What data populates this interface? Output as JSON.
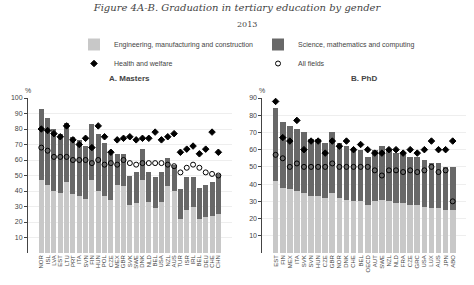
{
  "title": "Figure 4A-B. Graduation in tertiary education by gender",
  "subtitle": "2013",
  "chart_data": [
    {
      "type": "bar",
      "title": "A. Masters",
      "stacked": true,
      "grid": true,
      "legend": "top",
      "ylabel": "%",
      "categories": [
        "NOR",
        "ISL",
        "LVA",
        "EST",
        "LTU",
        "PRT",
        "ITA",
        "SVN",
        "FIN",
        "HUN",
        "POL",
        "CZE",
        "MEX",
        "GBR",
        "SVK",
        "SWE",
        "DNK",
        "NLD",
        "BEL",
        "USA",
        "NZL",
        "AUS",
        "TUR",
        "ISR",
        "IRL",
        "BEL",
        "DEU",
        "CHE",
        "CHN"
      ],
      "series": [
        {
          "name": "Engineering, manufacturing and construction",
          "type": "bar",
          "color": "#c8c8c8",
          "values": [
            47,
            44,
            40,
            39,
            46,
            38,
            37,
            35,
            47,
            40,
            37,
            34,
            44,
            43,
            31,
            32,
            47,
            33,
            29,
            33,
            43,
            40,
            22,
            28,
            30,
            22,
            23,
            24,
            25
          ]
        },
        {
          "name": "Science, mathematics and computing",
          "type": "bar",
          "color": "#686868",
          "values": [
            46,
            43,
            40,
            38,
            38,
            37,
            36,
            34,
            36,
            37,
            34,
            30,
            20,
            21,
            19,
            20,
            20,
            19,
            20,
            19,
            18,
            17,
            19,
            21,
            19,
            20,
            21,
            22,
            26
          ]
        },
        {
          "name": "Health and welfare",
          "type": "scatter",
          "color": "#000000",
          "marker": "diamond",
          "values": [
            80,
            79,
            77,
            75,
            82,
            73,
            70,
            74,
            68,
            82,
            75,
            65,
            73,
            74,
            75,
            73,
            74,
            74,
            78,
            73,
            75,
            77,
            65,
            67,
            69,
            64,
            67,
            78,
            65
          ]
        },
        {
          "name": "All fields",
          "type": "scatter",
          "color": "#000000",
          "marker": "circle-open",
          "values": [
            68,
            66,
            62,
            62,
            62,
            60,
            60,
            60,
            58,
            60,
            57,
            58,
            57,
            60,
            58,
            57,
            58,
            58,
            58,
            58,
            57,
            56,
            52,
            55,
            57,
            55,
            52,
            51,
            50
          ]
        }
      ],
      "ylim": [
        0,
        100
      ],
      "yticks": [
        10,
        20,
        30,
        40,
        50,
        60,
        70,
        80,
        90,
        100
      ]
    },
    {
      "type": "bar",
      "title": "B. PhD",
      "stacked": true,
      "grid": true,
      "legend": "top",
      "ylabel": "%",
      "categories": [
        "EST",
        "FIN",
        "MEX",
        "ITA",
        "SVK",
        "SVN",
        "HUN",
        "CZE",
        "GBR",
        "NOR",
        "DNK",
        "CHE",
        "BEL",
        "OECD",
        "AUT",
        "SWE",
        "NZL",
        "NLD",
        "FRA",
        "CZE",
        "GRC",
        "USA",
        "LUX",
        "AUS",
        "JPN",
        "ABO"
      ],
      "series": [
        {
          "name": "Engineering, manufacturing and construction",
          "type": "bar",
          "color": "#c8c8c8",
          "values": [
            42,
            38,
            37,
            36,
            35,
            33,
            33,
            32,
            35,
            32,
            31,
            30,
            30,
            28,
            30,
            31,
            30,
            29,
            29,
            28,
            28,
            27,
            26,
            26,
            25,
            25
          ]
        },
        {
          "name": "Science, mathematics and computing",
          "type": "bar",
          "color": "#686868",
          "values": [
            42,
            38,
            37,
            36,
            35,
            33,
            33,
            32,
            35,
            32,
            31,
            30,
            30,
            28,
            30,
            31,
            30,
            29,
            29,
            28,
            28,
            27,
            26,
            26,
            25,
            25
          ]
        },
        {
          "name": "Health and welfare",
          "type": "scatter",
          "color": "#000000",
          "marker": "diamond",
          "values": [
            88,
            67,
            65,
            77,
            60,
            65,
            65,
            58,
            65,
            62,
            65,
            60,
            63,
            60,
            58,
            58,
            60,
            60,
            58,
            60,
            58,
            60,
            65,
            60,
            60,
            65
          ]
        },
        {
          "name": "All fields",
          "type": "scatter",
          "color": "#000000",
          "marker": "circle-open",
          "values": [
            57,
            55,
            50,
            52,
            50,
            50,
            50,
            50,
            52,
            50,
            50,
            50,
            50,
            50,
            48,
            45,
            48,
            48,
            47,
            48,
            47,
            48,
            50,
            47,
            48,
            30
          ]
        }
      ],
      "ylim": [
        0,
        90
      ],
      "yticks": [
        10,
        20,
        30,
        40,
        50,
        60,
        70,
        80,
        90
      ]
    }
  ]
}
